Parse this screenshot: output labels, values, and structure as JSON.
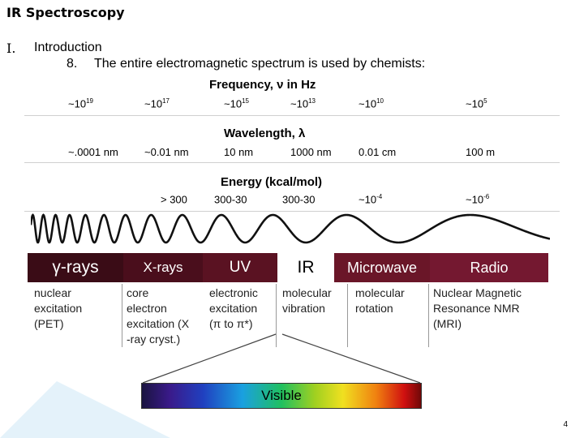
{
  "slide": {
    "title": "IR Spectroscopy",
    "section_num": "I.",
    "section_name": "Introduction",
    "item_num": "8.",
    "item_text": "The entire electromagnetic spectrum is used by chemists:",
    "page_number": "4"
  },
  "frequency": {
    "heading": "Frequency, ν in Hz",
    "values": [
      {
        "base": "~10",
        "exp": "19"
      },
      {
        "base": "~10",
        "exp": "17"
      },
      {
        "base": "~10",
        "exp": "15"
      },
      {
        "base": "~10",
        "exp": "13"
      },
      {
        "base": "~10",
        "exp": "10"
      },
      {
        "base": "~10",
        "exp": "5"
      }
    ]
  },
  "wavelength": {
    "heading": "Wavelength, λ",
    "values": [
      "~.0001 nm",
      "~0.01 nm",
      "10 nm",
      "1000 nm",
      "0.01 cm",
      "100 m"
    ]
  },
  "energy": {
    "heading": "Energy (kcal/mol)",
    "values": [
      {
        "base": "> 300",
        "exp": ""
      },
      {
        "base": "300-30",
        "exp": ""
      },
      {
        "base": "300-30",
        "exp": ""
      },
      {
        "base": "~10",
        "exp": "-4"
      },
      {
        "base": "~10",
        "exp": "-6"
      }
    ]
  },
  "bands": [
    {
      "label": "γ-rays",
      "color": "#3a0c16"
    },
    {
      "label": "X-rays",
      "color": "#4a0e1c"
    },
    {
      "label": "UV",
      "color": "#5a1222"
    },
    {
      "label": "IR",
      "color": "#ffffff"
    },
    {
      "label": "Microwave",
      "color": "#6a1628"
    },
    {
      "label": "Radio",
      "color": "#741830"
    }
  ],
  "descriptions": [
    {
      "lines": [
        "nuclear",
        "excitation",
        "(PET)"
      ]
    },
    {
      "lines": [
        "core",
        "electron",
        "excitation (X",
        "-ray cryst.)"
      ]
    },
    {
      "lines": [
        "electronic",
        "excitation",
        "(π to π*)"
      ]
    },
    {
      "lines": [
        "molecular",
        "vibration"
      ]
    },
    {
      "lines": [
        "molecular",
        "rotation"
      ]
    },
    {
      "lines": [
        "Nuclear Magnetic",
        "Resonance  NMR",
        "(MRI)"
      ]
    }
  ],
  "visible": {
    "label": "Visible"
  }
}
